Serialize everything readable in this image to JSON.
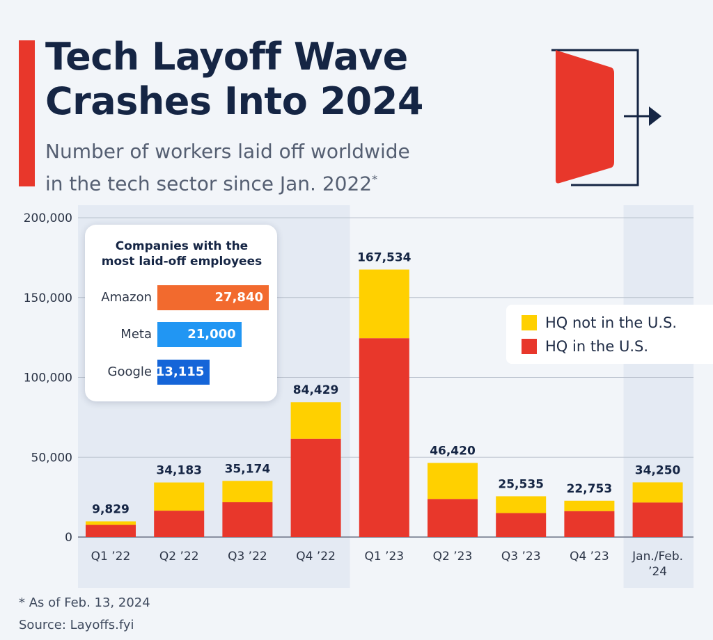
{
  "header": {
    "title_line1": "Tech Layoff Wave",
    "title_line2": "Crashes Into 2024",
    "subtitle_line1": "Number of workers laid off worldwide",
    "subtitle_line2": "in the tech sector since Jan. 2022",
    "subtitle_mark": "*"
  },
  "colors": {
    "accent": "#e8372b",
    "us": "#e8372b",
    "non_us": "#ffd000",
    "amazon": "#f26a2e",
    "meta": "#2196f3",
    "google": "#1565d8",
    "shaded_period": "#e4eaf3"
  },
  "chart_data": {
    "type": "bar",
    "stacked": true,
    "categories": [
      "Q1 '22",
      "Q2 '22",
      "Q3 '22",
      "Q4 '22",
      "Q1 '23",
      "Q2 '23",
      "Q3 '23",
      "Q4 '23",
      "Jan./Feb. '24"
    ],
    "category_labels": [
      [
        "Q1 ’22"
      ],
      [
        "Q2 ’22"
      ],
      [
        "Q3 ’22"
      ],
      [
        "Q4 ’22"
      ],
      [
        "Q1 ’23"
      ],
      [
        "Q2 ’23"
      ],
      [
        "Q3 ’23"
      ],
      [
        "Q4 ’23"
      ],
      [
        "Jan./Feb.",
        "’24"
      ]
    ],
    "series": [
      {
        "name": "HQ in the U.S.",
        "values": [
          7600,
          16500,
          21800,
          61500,
          124500,
          23800,
          15000,
          16200,
          21600
        ]
      },
      {
        "name": "HQ not in the U.S.",
        "values": [
          2229,
          17683,
          13374,
          22929,
          43034,
          22620,
          10535,
          6553,
          12650
        ]
      }
    ],
    "totals": [
      9829,
      34183,
      35174,
      84429,
      167534,
      46420,
      25535,
      22753,
      34250
    ],
    "total_labels": [
      "9,829",
      "34,183",
      "35,174",
      "84,429",
      "167,534",
      "46,420",
      "25,535",
      "22,753",
      "34,250"
    ],
    "yticks": [
      0,
      50000,
      100000,
      150000,
      200000
    ],
    "ytick_labels": [
      "0",
      "50,000",
      "100,000",
      "150,000",
      "200,000"
    ],
    "ylim": [
      0,
      200000
    ],
    "grid": true,
    "shaded_categories": [
      "Q1 '22",
      "Q2 '22",
      "Q3 '22",
      "Q4 '22",
      "Jan./Feb. '24"
    ],
    "legend": {
      "position": "right",
      "items": [
        {
          "label": "HQ not in the U.S.",
          "color": "#ffd000"
        },
        {
          "label": "HQ in the U.S.",
          "color": "#e8372b"
        }
      ]
    },
    "inset": {
      "title_line1": "Companies with the",
      "title_line2": "most laid-off employees",
      "items": [
        {
          "name": "Amazon",
          "value": 27840,
          "label": "27,840",
          "color": "#f26a2e"
        },
        {
          "name": "Meta",
          "value": 21000,
          "label": "21,000",
          "color": "#2196f3"
        },
        {
          "name": "Google",
          "value": 13115,
          "label": "13,115",
          "color": "#1565d8"
        }
      ]
    }
  },
  "footer": {
    "footnote": "* As of Feb. 13, 2024",
    "source": "Source: Layoffs.fyi"
  }
}
